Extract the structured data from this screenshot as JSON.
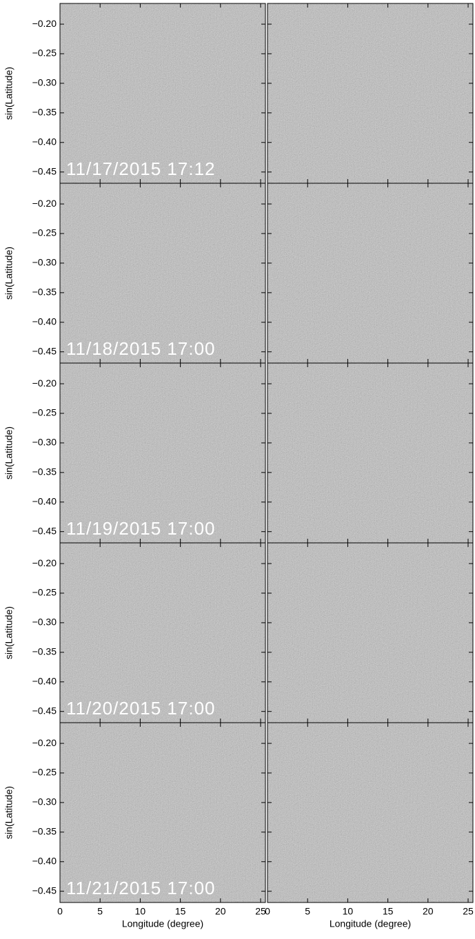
{
  "chart_data": {
    "type": "image-grid",
    "xlabel": "Longitude (degree)",
    "ylabel": "sin(Latitude)",
    "xlim": [
      0,
      25.6
    ],
    "ylim": [
      -0.469,
      -0.165
    ],
    "xticks": [
      0,
      5,
      10,
      15,
      20,
      25
    ],
    "yticks": [
      {
        "value": -0.2,
        "label": "−0.20"
      },
      {
        "value": -0.25,
        "label": "−0.25"
      },
      {
        "value": -0.3,
        "label": "−0.30"
      },
      {
        "value": -0.35,
        "label": "−0.35"
      },
      {
        "value": -0.4,
        "label": "−0.40"
      },
      {
        "value": -0.45,
        "label": "−0.45"
      }
    ],
    "rows": [
      {
        "label": "11/17/2015 17:12"
      },
      {
        "label": "11/18/2015 17:00"
      },
      {
        "label": "11/19/2015 17:00"
      },
      {
        "label": "11/20/2015 17:00"
      },
      {
        "label": "11/21/2015 17:00"
      }
    ]
  }
}
